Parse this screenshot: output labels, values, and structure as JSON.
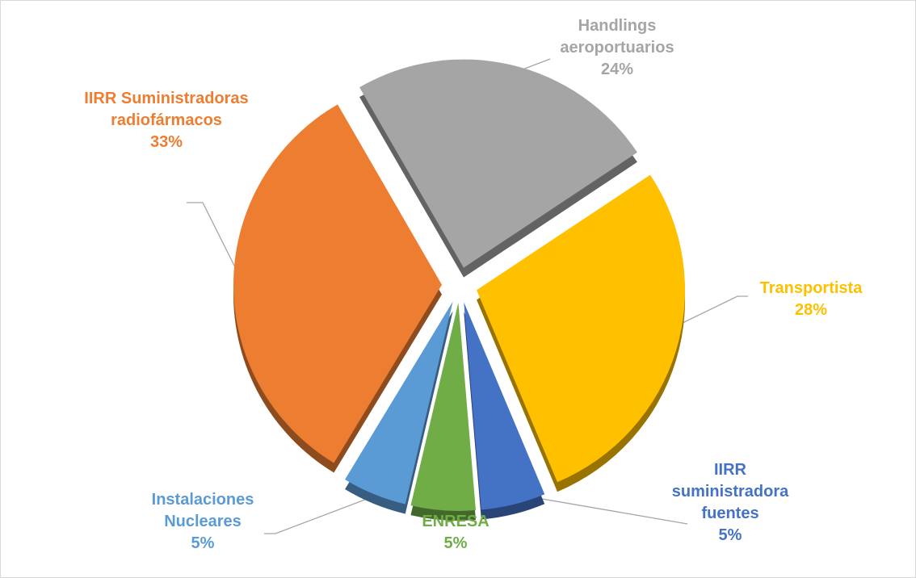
{
  "chart_data": {
    "type": "pie",
    "categories": [
      "Handlings aeroportuarios",
      "Transportista",
      "IIRR suministradora fuentes",
      "ENRESA",
      "Instalaciones Nucleares",
      "IIRR Suministradoras radiofármacos"
    ],
    "values": [
      24,
      28,
      5,
      5,
      5,
      33
    ],
    "value_labels": [
      "24%",
      "28%",
      "5%",
      "5%",
      "5%",
      "33%"
    ],
    "colors": [
      "#a5a5a5",
      "#ffc000",
      "#4472c4",
      "#70ad47",
      "#5b9bd5",
      "#ed7d31"
    ]
  }
}
